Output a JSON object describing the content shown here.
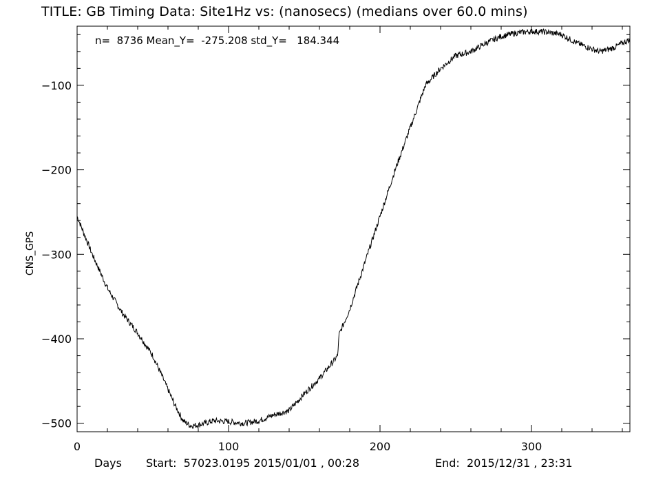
{
  "title": "TITLE: GB Timing Data: Site1Hz vs: (nanosecs) (medians over 60.0 mins)",
  "stats": "n=  8736 Mean_Y=  -275.208 std_Y=   184.344",
  "footer": {
    "days_label": "Days",
    "start": "Start:  57023.0195 2015/01/01 , 00:28",
    "end": "End:  2015/12/31 , 23:31"
  },
  "chart_data": {
    "type": "line",
    "ylabel": "CNS_GPS",
    "xlabel": "Days",
    "xlim": [
      0,
      365
    ],
    "ylim": [
      -510,
      -30
    ],
    "x_ticks": [
      0,
      100,
      200,
      300
    ],
    "y_ticks": [
      -100,
      -200,
      -300,
      -400,
      -500
    ],
    "series": [
      {
        "x": [
          0,
          10,
          20,
          30,
          40,
          50,
          60,
          65,
          70,
          75,
          80,
          90,
          100,
          110,
          120,
          130,
          140,
          150,
          160,
          170,
          172,
          173,
          180,
          190,
          200,
          210,
          220,
          230,
          240,
          250,
          260,
          270,
          280,
          290,
          300,
          310,
          320,
          330,
          340,
          345,
          350,
          355,
          360,
          365
        ],
        "y": [
          -255,
          -300,
          -340,
          -370,
          -393,
          -420,
          -460,
          -480,
          -497,
          -503,
          -502,
          -497,
          -498,
          -500,
          -497,
          -490,
          -485,
          -465,
          -447,
          -425,
          -420,
          -395,
          -365,
          -310,
          -255,
          -200,
          -150,
          -100,
          -80,
          -65,
          -60,
          -50,
          -42,
          -38,
          -36,
          -37,
          -40,
          -50,
          -57,
          -60,
          -58,
          -55,
          -50,
          -46
        ]
      }
    ]
  },
  "colors": {
    "line": "#000000",
    "background": "#ffffff"
  }
}
